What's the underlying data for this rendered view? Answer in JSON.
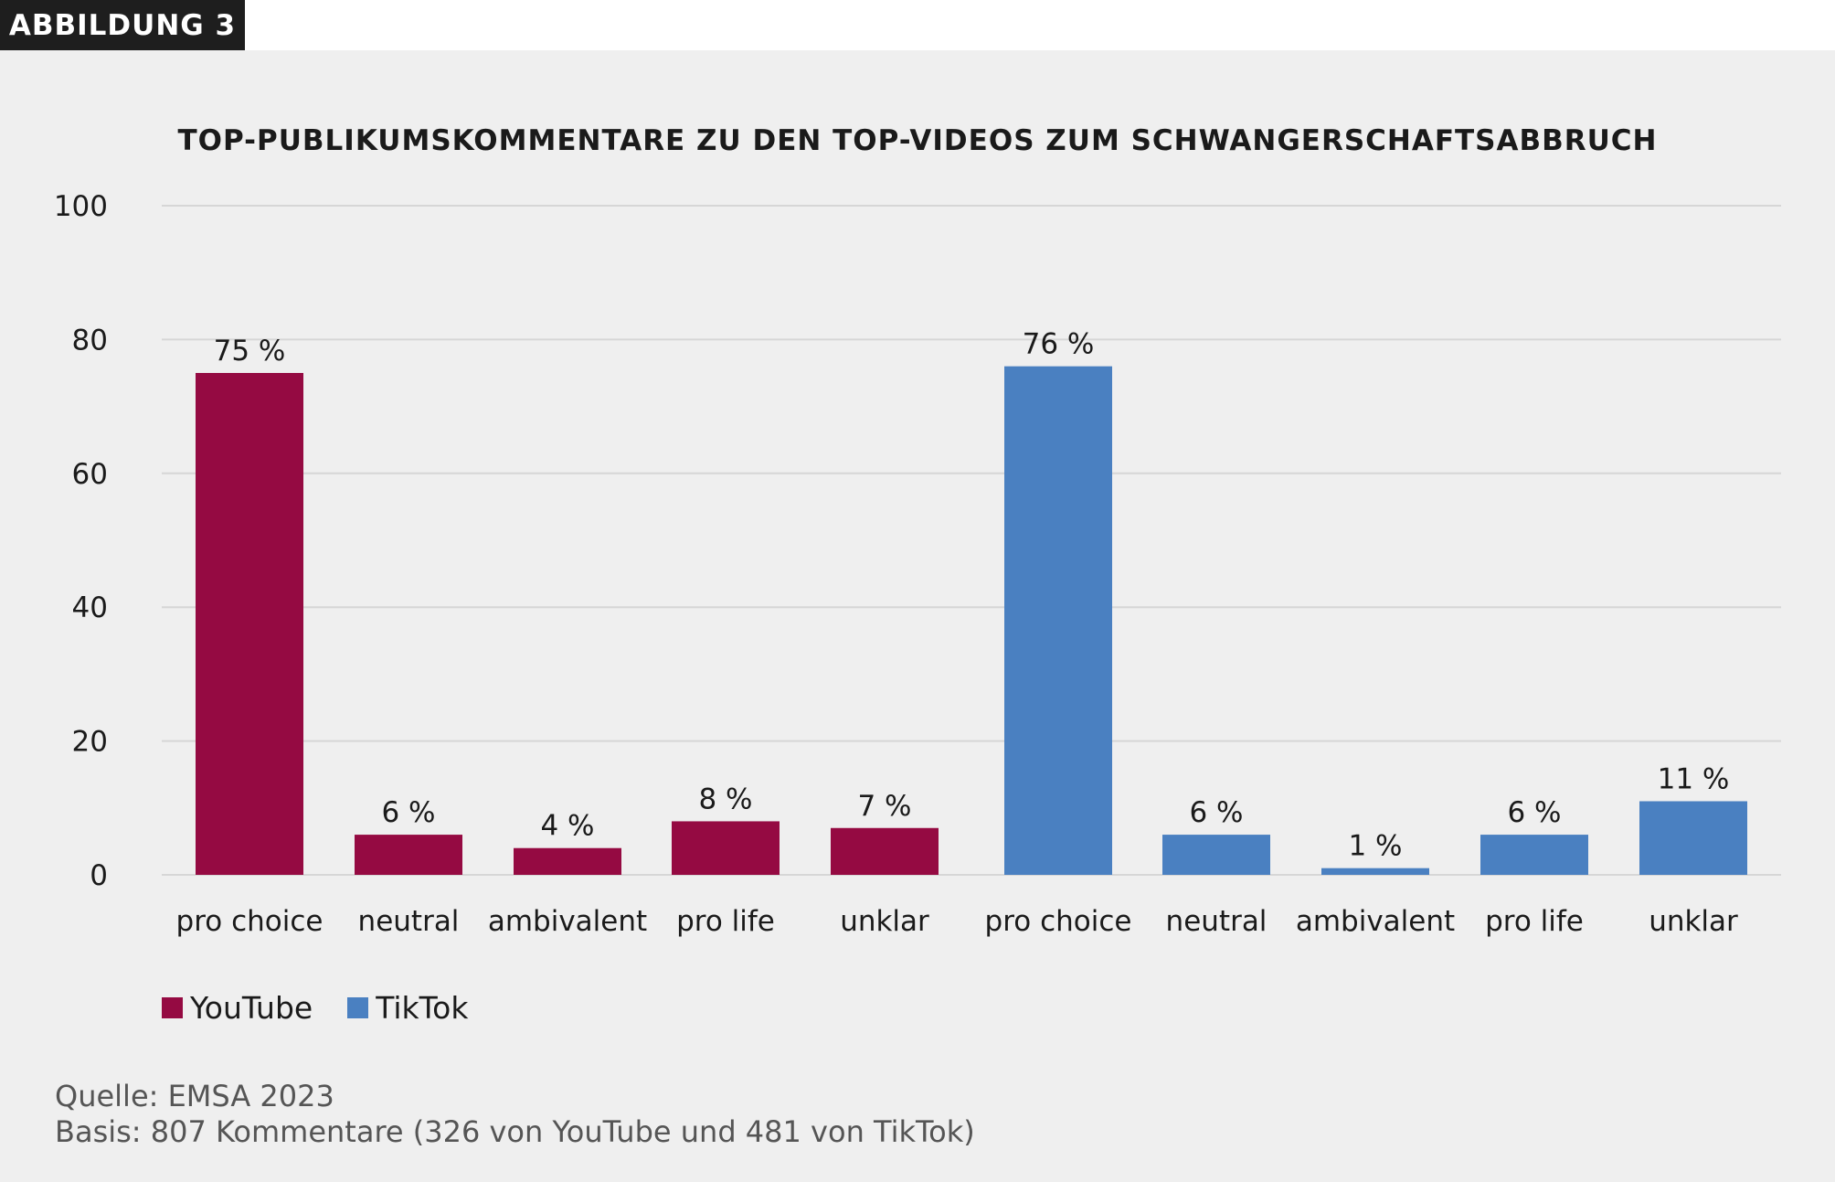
{
  "header": {
    "badge": "ABBILDUNG 3"
  },
  "chart_data": {
    "type": "bar",
    "title": "TOP-PUBLIKUMSKOMMENTARE ZU DEN TOP-VIDEOS ZUM SCHWANGERSCHAFTSABBRUCH",
    "xlabel": "",
    "ylabel": "",
    "ylim": [
      0,
      100
    ],
    "yticks": [
      0,
      20,
      40,
      60,
      80,
      100
    ],
    "grid": true,
    "legend_position": "bottom-left",
    "series": [
      {
        "name": "YouTube",
        "color": "#950a42",
        "categories": [
          "pro choice",
          "neutral",
          "ambivalent",
          "pro life",
          "unklar"
        ],
        "values": [
          75,
          6,
          4,
          8,
          7
        ],
        "labels": [
          "75 %",
          "6 %",
          "4 %",
          "8 %",
          "7 %"
        ]
      },
      {
        "name": "TikTok",
        "color": "#4a80c1",
        "categories": [
          "pro choice",
          "neutral",
          "ambivalent",
          "pro life",
          "unklar"
        ],
        "values": [
          76,
          6,
          1,
          6,
          11
        ],
        "labels": [
          "76 %",
          "6 %",
          "1 %",
          "6 %",
          "11 %"
        ]
      }
    ]
  },
  "footer": {
    "source": "Quelle: EMSA 2023",
    "basis": "Basis: 807 Kommentare (326 von YouTube und 481 von TikTok)"
  }
}
